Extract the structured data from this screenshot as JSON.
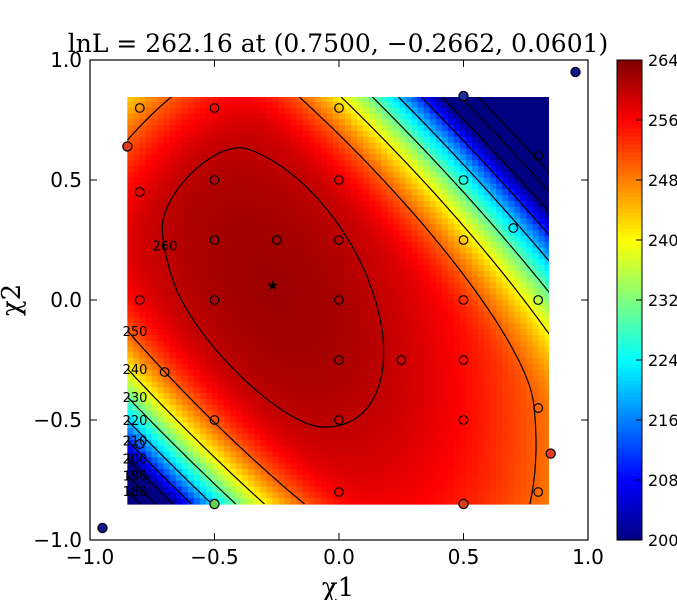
{
  "chart_data": {
    "type": "heatmap",
    "title": "lnL = 262.16 at (0.7500, −0.2662, 0.0601)",
    "xlabel": "χ1",
    "ylabel": "χ2",
    "xlim": [
      -1.0,
      1.0
    ],
    "ylim": [
      -1.0,
      1.0
    ],
    "x_ticks": [
      -1.0,
      -0.5,
      0.0,
      0.5,
      1.0
    ],
    "y_ticks": [
      -1.0,
      -0.5,
      0.0,
      0.5,
      1.0
    ],
    "x_tick_labels": [
      "−1.0",
      "−0.5",
      "0.0",
      "0.5",
      "1.0"
    ],
    "y_tick_labels": [
      "−1.0",
      "−0.5",
      "0.0",
      "0.5",
      "1.0"
    ],
    "heatmap_extent": {
      "x": [
        -0.85,
        0.85
      ],
      "y": [
        -0.85,
        0.85
      ]
    },
    "colormap": "jet",
    "colorbar": {
      "min": 200,
      "max": 264,
      "ticks": [
        200,
        208,
        216,
        224,
        232,
        240,
        248,
        256,
        264
      ],
      "tick_labels": [
        "200",
        "208",
        "216",
        "224",
        "232",
        "240",
        "248",
        "256",
        "264"
      ]
    },
    "peak": {
      "chi1": -0.2662,
      "chi2": 0.0601,
      "lnL": 262.16,
      "marker": "star"
    },
    "contour_levels": [
      180,
      190,
      200,
      210,
      220,
      230,
      240,
      250,
      260
    ],
    "contour_labels": [
      "180",
      "190",
      "200",
      "210",
      "220",
      "230",
      "240",
      "250",
      "260"
    ],
    "grid": false,
    "sample_points": [
      {
        "x": -0.8,
        "y": 0.8
      },
      {
        "x": -0.5,
        "y": 0.8
      },
      {
        "x": 0.0,
        "y": 0.8
      },
      {
        "x": 0.5,
        "y": 0.85
      },
      {
        "x": 0.8,
        "y": 0.6
      },
      {
        "x": -0.8,
        "y": 0.45
      },
      {
        "x": -0.5,
        "y": 0.5
      },
      {
        "x": 0.0,
        "y": 0.5
      },
      {
        "x": 0.5,
        "y": 0.5
      },
      {
        "x": 0.7,
        "y": 0.3
      },
      {
        "x": -0.5,
        "y": 0.25
      },
      {
        "x": -0.25,
        "y": 0.25
      },
      {
        "x": 0.0,
        "y": 0.25
      },
      {
        "x": 0.5,
        "y": 0.25
      },
      {
        "x": -0.8,
        "y": 0.0
      },
      {
        "x": -0.5,
        "y": 0.0
      },
      {
        "x": 0.0,
        "y": 0.0
      },
      {
        "x": 0.5,
        "y": 0.0
      },
      {
        "x": 0.8,
        "y": 0.0
      },
      {
        "x": -0.7,
        "y": -0.3
      },
      {
        "x": 0.0,
        "y": -0.25
      },
      {
        "x": 0.25,
        "y": -0.25
      },
      {
        "x": 0.5,
        "y": -0.25
      },
      {
        "x": -0.5,
        "y": -0.5
      },
      {
        "x": 0.0,
        "y": -0.5
      },
      {
        "x": 0.5,
        "y": -0.5
      },
      {
        "x": 0.8,
        "y": -0.45
      },
      {
        "x": -0.8,
        "y": -0.6
      },
      {
        "x": 0.0,
        "y": -0.8
      },
      {
        "x": 0.5,
        "y": -0.85
      },
      {
        "x": 0.8,
        "y": -0.8
      },
      {
        "x": -0.5,
        "y": -0.85
      }
    ],
    "edge_points": [
      {
        "x": -0.85,
        "y": 0.64,
        "color": "#e03a1e"
      },
      {
        "x": 0.5,
        "y": 0.85,
        "color": "#1b2f9e"
      },
      {
        "x": 0.95,
        "y": 0.95,
        "color": "#0a1a8c"
      },
      {
        "x": 0.85,
        "y": -0.64,
        "color": "#e83a22"
      },
      {
        "x": -0.95,
        "y": -0.95,
        "color": "#0a1a8c"
      },
      {
        "x": -0.5,
        "y": -0.85,
        "color": "#5fd35a"
      },
      {
        "x": 0.5,
        "y": -0.85,
        "color": "#d9421c"
      }
    ]
  }
}
